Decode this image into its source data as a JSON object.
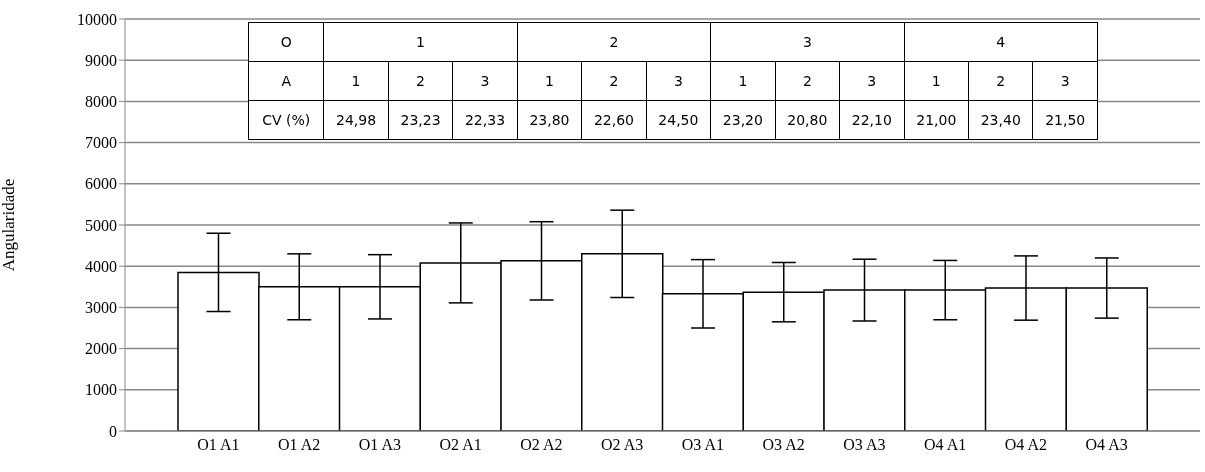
{
  "chart_data": {
    "type": "bar",
    "ylabel": "Angularidade",
    "categories": [
      "O1 A1",
      "O1 A2",
      "O1 A3",
      "O2 A1",
      "O2 A2",
      "O2 A3",
      "O3 A1",
      "O3 A2",
      "O3 A3",
      "O4 A1",
      "O4 A2",
      "O4 A3"
    ],
    "values": [
      3850,
      3500,
      3500,
      4080,
      4130,
      4300,
      3330,
      3370,
      3420,
      3420,
      3470,
      3470
    ],
    "errors": [
      950,
      800,
      780,
      970,
      950,
      1060,
      830,
      720,
      750,
      720,
      780,
      730
    ],
    "color": "#ffffff",
    "ylim": [
      0,
      10000
    ],
    "yticks": [
      0,
      1000,
      2000,
      3000,
      4000,
      5000,
      6000,
      7000,
      8000,
      9000,
      10000
    ],
    "grid": "y",
    "legend": false,
    "annotations": [
      "O",
      "1",
      "2",
      "3",
      "4",
      "A",
      "1",
      "2",
      "3",
      "1",
      "2",
      "3",
      "1",
      "2",
      "3",
      "1",
      "2",
      "3",
      "CV (%)",
      "24,98",
      "23,23",
      "22,33",
      "23,80",
      "22,60",
      "24,50",
      "23,20",
      "20,80",
      "22,10",
      "21,00",
      "23,40",
      "21,50"
    ]
  }
}
